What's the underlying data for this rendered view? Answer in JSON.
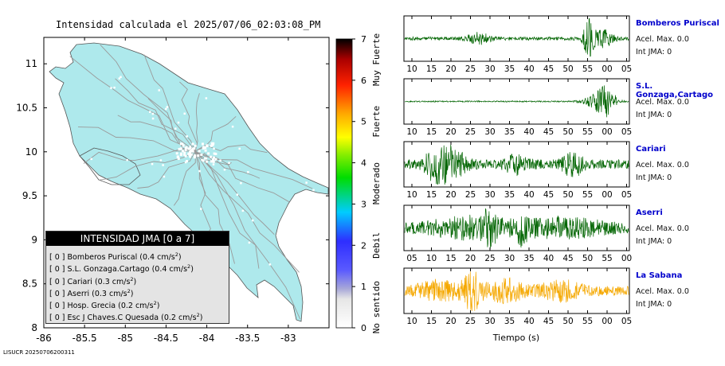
{
  "map": {
    "title": "Intensidad calculada el 2025/07/06_02:03:08_PM",
    "x_ticks": [
      "-86",
      "-85.5",
      "-85",
      "-84.5",
      "-84",
      "-83.5",
      "-83"
    ],
    "x_tick_values": [
      -86,
      -85.5,
      -85,
      -84.5,
      -84,
      -83.5,
      -83
    ],
    "y_ticks": [
      "11",
      "10.5",
      "10",
      "9.5",
      "9",
      "8.5",
      "8"
    ],
    "y_tick_values": [
      11,
      10.5,
      10,
      9.5,
      9,
      8.5,
      8
    ],
    "xlim": [
      -86,
      -82.5
    ],
    "ylim": [
      8,
      11.3
    ],
    "land_color": "#aee9ec",
    "road_color": "#9a9a9a"
  },
  "colorbar": {
    "ticks": [
      "0",
      "1",
      "2",
      "3",
      "4",
      "5",
      "6",
      "7"
    ],
    "levels": [
      "No sentido",
      "Debil",
      "Moderado",
      "Fuerte",
      "Muy Fuerte"
    ]
  },
  "legend": {
    "title": "INTENSIDAD JMA [0 a 7]",
    "items": [
      {
        "prefix": "[ 0 ]",
        "name": "Bomberos Puriscal",
        "value": "(0.4 cm/s",
        "unit_sup": "2",
        "close": ")"
      },
      {
        "prefix": "[ 0 ]",
        "name": "S.L. Gonzaga.Cartago",
        "value": "(0.4 cm/s",
        "unit_sup": "2",
        "close": ")"
      },
      {
        "prefix": "[ 0 ]",
        "name": "Cariari",
        "value": "(0.3 cm/s",
        "unit_sup": "2",
        "close": ")"
      },
      {
        "prefix": "[ 0 ]",
        "name": "Aserri",
        "value": "(0.3 cm/s",
        "unit_sup": "2",
        "close": ")"
      },
      {
        "prefix": "[ 0 ]",
        "name": "Hosp. Grecia",
        "value": "(0.2 cm/s",
        "unit_sup": "2",
        "close": ")"
      },
      {
        "prefix": "[ 0 ]",
        "name": "Esc J Chaves.C Quesada",
        "value": "(0.2 cm/s",
        "unit_sup": "2",
        "close": ")"
      }
    ]
  },
  "traces": [
    {
      "station": "Bomberos Puriscal",
      "accel": "Acel. Max. 0.0",
      "jma": "Int JMA: 0",
      "color": "#006400",
      "ticks": [
        "10",
        "15",
        "20",
        "25",
        "30",
        "35",
        "40",
        "45",
        "50",
        "55",
        "00",
        "05"
      ],
      "first_tick": 10
    },
    {
      "station": "S.L. Gonzaga,Cartago",
      "accel": "Acel. Max. 0.0",
      "jma": "Int JMA: 0",
      "color": "#006400",
      "ticks": [
        "10",
        "15",
        "20",
        "25",
        "30",
        "35",
        "40",
        "45",
        "50",
        "55",
        "00",
        "05"
      ],
      "first_tick": 10
    },
    {
      "station": "Cariari",
      "accel": "Acel. Max. 0.0",
      "jma": "Int JMA: 0",
      "color": "#006400",
      "ticks": [
        "10",
        "15",
        "20",
        "25",
        "30",
        "35",
        "40",
        "45",
        "50",
        "55",
        "00",
        "05"
      ],
      "first_tick": 10
    },
    {
      "station": "Aserri",
      "accel": "Acel. Max. 0.0",
      "jma": "Int JMA: 0",
      "color": "#006400",
      "ticks": [
        "05",
        "10",
        "15",
        "20",
        "25",
        "30",
        "35",
        "40",
        "45",
        "50",
        "55",
        "00"
      ],
      "first_tick": 5
    },
    {
      "station": "La Sabana",
      "accel": "Acel. Max. 0.0",
      "jma": "Int JMA: 0",
      "color": "#f5a800",
      "ticks": [
        "10",
        "15",
        "20",
        "25",
        "30",
        "35",
        "40",
        "45",
        "50",
        "55",
        "00",
        "05"
      ],
      "first_tick": 10
    }
  ],
  "time_axis_label": "Tiempo (s)",
  "footer": "LISUCR 20250706200311",
  "chart_data": {
    "type": "map",
    "title": "Intensidad calculada el 2025/07/06_02:03:08_PM",
    "xlim": [
      -86,
      -82.5
    ],
    "ylim": [
      8,
      11.3
    ],
    "colorbar_range": [
      0,
      7
    ],
    "stations": [
      {
        "name": "Bomberos Puriscal",
        "jma": 0,
        "pga_cm_s2": 0.4
      },
      {
        "name": "S.L. Gonzaga.Cartago",
        "jma": 0,
        "pga_cm_s2": 0.4
      },
      {
        "name": "Cariari",
        "jma": 0,
        "pga_cm_s2": 0.3
      },
      {
        "name": "Aserri",
        "jma": 0,
        "pga_cm_s2": 0.3
      },
      {
        "name": "Hosp. Grecia",
        "jma": 0,
        "pga_cm_s2": 0.2
      },
      {
        "name": "Esc J Chaves.C Quesada",
        "jma": 0,
        "pga_cm_s2": 0.2
      }
    ]
  }
}
